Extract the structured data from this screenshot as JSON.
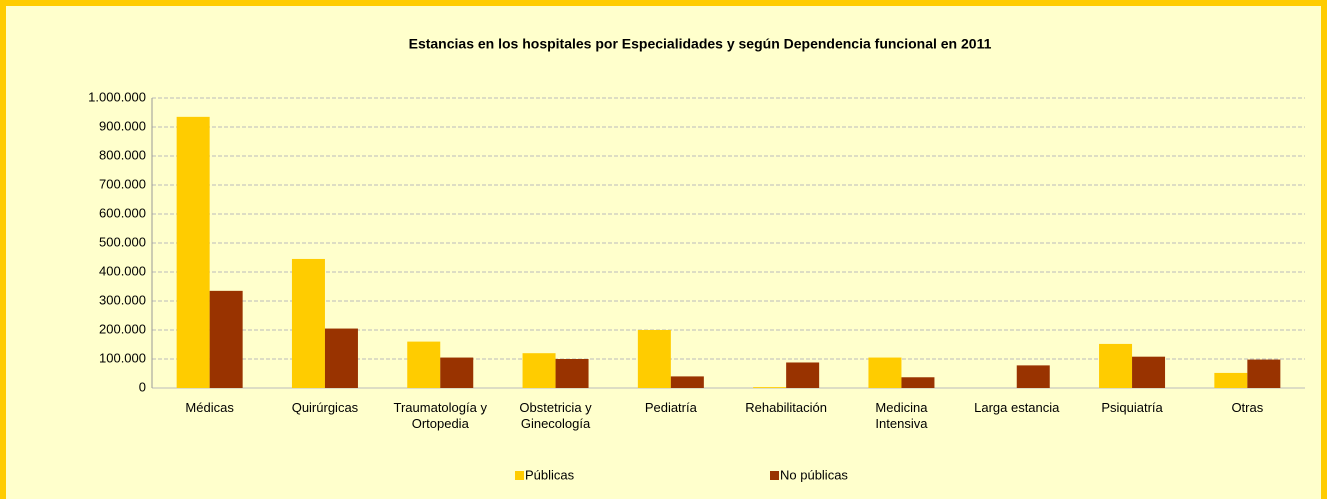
{
  "chart_data": {
    "type": "bar",
    "title": "Estancias en los hospitales por Especialidades y según Dependencia funcional en 2011",
    "categories": [
      "Médicas",
      "Quirúrgicas",
      "Traumatología y Ortopedia",
      "Obstetricia y Ginecología",
      "Pediatría",
      "Rehabilitación",
      "Medicina Intensiva",
      "Larga estancia",
      "Psiquiatría",
      "Otras"
    ],
    "series": [
      {
        "name": "Públicas",
        "color": "#FFCC00",
        "values": [
          935000,
          445000,
          160000,
          120000,
          200000,
          3000,
          105000,
          0,
          152000,
          52000
        ]
      },
      {
        "name": "No públicas",
        "color": "#993300",
        "values": [
          335000,
          205000,
          105000,
          100000,
          40000,
          88000,
          37000,
          78000,
          108000,
          98000
        ]
      }
    ],
    "ylim": [
      0,
      1000000
    ],
    "yticks": [
      0,
      {
        "value": 100000,
        "label": "100.000"
      },
      {
        "value": 200000,
        "label": "200.000"
      },
      {
        "value": 300000,
        "label": "300.000"
      },
      {
        "value": 400000,
        "label": "400.000"
      },
      {
        "value": 500000,
        "label": "500.000"
      },
      {
        "value": 600000,
        "label": "600.000"
      },
      {
        "value": 700000,
        "label": "700.000"
      },
      {
        "value": 800000,
        "label": "800.000"
      },
      {
        "value": 900000,
        "label": "900.000"
      },
      {
        "value": 1000000,
        "label": "1.000.000"
      }
    ],
    "grid": true,
    "legend": "bottom"
  }
}
